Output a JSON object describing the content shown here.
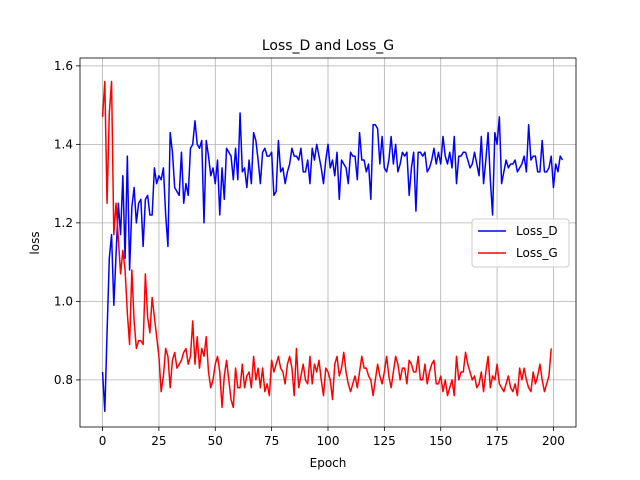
{
  "chart_data": {
    "type": "line",
    "title": "Loss_D and Loss_G",
    "xlabel": "Epoch",
    "ylabel": "loss",
    "xlim": [
      -10,
      210
    ],
    "ylim": [
      0.68,
      1.62
    ],
    "xticks": [
      0,
      25,
      50,
      75,
      100,
      125,
      150,
      175,
      200
    ],
    "yticks": [
      0.8,
      1.0,
      1.2,
      1.4,
      1.6
    ],
    "ytick_labels": [
      "0.8",
      "1.0",
      "1.2",
      "1.4",
      "1.6"
    ],
    "grid": true,
    "legend_position": "center-right",
    "series": [
      {
        "name": "Loss_D",
        "color": "#0000ff",
        "values": [
          0.82,
          0.72,
          0.92,
          1.11,
          1.17,
          0.99,
          1.12,
          1.25,
          1.17,
          1.32,
          1.11,
          1.37,
          1.08,
          1.24,
          1.29,
          1.2,
          1.25,
          1.26,
          1.14,
          1.26,
          1.27,
          1.22,
          1.22,
          1.34,
          1.3,
          1.32,
          1.31,
          1.34,
          1.22,
          1.14,
          1.43,
          1.38,
          1.29,
          1.28,
          1.27,
          1.38,
          1.25,
          1.3,
          1.27,
          1.39,
          1.4,
          1.46,
          1.4,
          1.39,
          1.41,
          1.2,
          1.41,
          1.37,
          1.32,
          1.34,
          1.3,
          1.36,
          1.22,
          1.34,
          1.26,
          1.39,
          1.38,
          1.37,
          1.31,
          1.39,
          1.31,
          1.48,
          1.33,
          1.34,
          1.29,
          1.36,
          1.3,
          1.43,
          1.41,
          1.36,
          1.3,
          1.38,
          1.39,
          1.37,
          1.37,
          1.38,
          1.27,
          1.28,
          1.41,
          1.33,
          1.34,
          1.3,
          1.33,
          1.35,
          1.39,
          1.37,
          1.37,
          1.36,
          1.39,
          1.33,
          1.33,
          1.36,
          1.3,
          1.39,
          1.36,
          1.4,
          1.37,
          1.34,
          1.3,
          1.36,
          1.4,
          1.34,
          1.36,
          1.32,
          1.38,
          1.26,
          1.36,
          1.35,
          1.34,
          1.3,
          1.38,
          1.37,
          1.37,
          1.31,
          1.43,
          1.36,
          1.36,
          1.33,
          1.35,
          1.26,
          1.45,
          1.45,
          1.44,
          1.35,
          1.42,
          1.34,
          1.33,
          1.36,
          1.42,
          1.35,
          1.4,
          1.33,
          1.35,
          1.38,
          1.37,
          1.38,
          1.27,
          1.34,
          1.38,
          1.23,
          1.38,
          1.38,
          1.37,
          1.38,
          1.33,
          1.34,
          1.36,
          1.39,
          1.35,
          1.38,
          1.35,
          1.42,
          1.37,
          1.35,
          1.38,
          1.34,
          1.42,
          1.3,
          1.37,
          1.37,
          1.38,
          1.38,
          1.36,
          1.34,
          1.35,
          1.38,
          1.35,
          1.32,
          1.42,
          1.3,
          1.36,
          1.43,
          1.31,
          1.22,
          1.43,
          1.4,
          1.47,
          1.3,
          1.33,
          1.36,
          1.34,
          1.35,
          1.35,
          1.36,
          1.33,
          1.34,
          1.35,
          1.37,
          1.33,
          1.45,
          1.36,
          1.37,
          1.37,
          1.33,
          1.33,
          1.41,
          1.33,
          1.33,
          1.34,
          1.37,
          1.29,
          1.35,
          1.33,
          1.37,
          1.36
        ]
      },
      {
        "name": "Loss_G",
        "color": "#ff0000",
        "values": [
          1.47,
          1.56,
          1.25,
          1.48,
          1.56,
          1.17,
          1.25,
          1.16,
          1.07,
          1.13,
          1.08,
          0.97,
          0.89,
          1.08,
          0.95,
          0.88,
          0.9,
          0.9,
          0.89,
          1.07,
          0.96,
          0.92,
          1.01,
          0.96,
          0.91,
          0.86,
          0.77,
          0.81,
          0.88,
          0.86,
          0.78,
          0.85,
          0.87,
          0.83,
          0.84,
          0.85,
          0.87,
          0.88,
          0.84,
          0.86,
          0.95,
          0.84,
          0.91,
          0.83,
          0.88,
          0.86,
          0.91,
          0.82,
          0.78,
          0.8,
          0.84,
          0.86,
          0.82,
          0.73,
          0.81,
          0.85,
          0.8,
          0.75,
          0.73,
          0.83,
          0.78,
          0.78,
          0.84,
          0.78,
          0.81,
          0.82,
          0.78,
          0.86,
          0.8,
          0.83,
          0.78,
          0.83,
          0.77,
          0.79,
          0.76,
          0.85,
          0.82,
          0.84,
          0.86,
          0.83,
          0.82,
          0.79,
          0.84,
          0.86,
          0.83,
          0.76,
          0.88,
          0.78,
          0.81,
          0.84,
          0.8,
          0.79,
          0.86,
          0.79,
          0.84,
          0.82,
          0.85,
          0.8,
          0.76,
          0.83,
          0.82,
          0.8,
          0.75,
          0.84,
          0.86,
          0.81,
          0.83,
          0.87,
          0.82,
          0.79,
          0.77,
          0.79,
          0.81,
          0.78,
          0.82,
          0.86,
          0.83,
          0.83,
          0.81,
          0.8,
          0.76,
          0.8,
          0.84,
          0.81,
          0.79,
          0.82,
          0.86,
          0.81,
          0.78,
          0.82,
          0.86,
          0.84,
          0.8,
          0.83,
          0.83,
          0.79,
          0.85,
          0.84,
          0.82,
          0.82,
          0.86,
          0.8,
          0.8,
          0.84,
          0.79,
          0.82,
          0.84,
          0.85,
          0.79,
          0.79,
          0.81,
          0.77,
          0.8,
          0.76,
          0.78,
          0.8,
          0.76,
          0.86,
          0.8,
          0.82,
          0.82,
          0.87,
          0.84,
          0.82,
          0.8,
          0.81,
          0.78,
          0.79,
          0.82,
          0.77,
          0.82,
          0.86,
          0.78,
          0.81,
          0.8,
          0.84,
          0.79,
          0.78,
          0.77,
          0.79,
          0.81,
          0.78,
          0.77,
          0.79,
          0.76,
          0.83,
          0.8,
          0.83,
          0.8,
          0.78,
          0.77,
          0.82,
          0.79,
          0.81,
          0.84,
          0.8,
          0.77,
          0.79,
          0.81,
          0.88
        ]
      }
    ]
  }
}
